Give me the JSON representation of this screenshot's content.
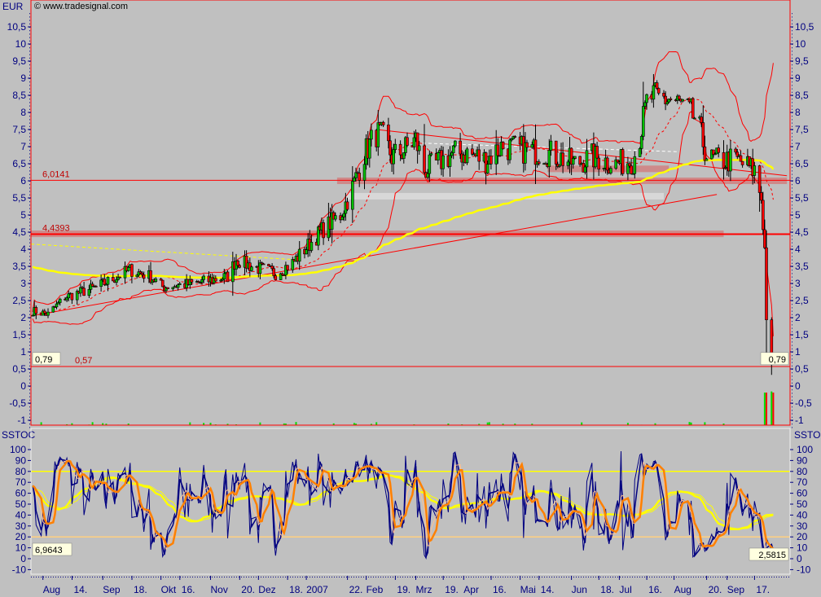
{
  "header": {
    "currency": "EUR",
    "copyright": "© www.tradesignal.com",
    "indicator": "SSTOC"
  },
  "colors": {
    "background": "#c0c0c0",
    "axis_text": "#000080",
    "panel_border": "#ff0000",
    "up_candle": "#00c000",
    "down_candle": "#ff0000",
    "bollinger": "#ff0000",
    "long_ma": "#ffff00",
    "stoch_fast": "#000080",
    "stoch_slow": "#ff8000",
    "stoch_signal": "#ffc090",
    "stoch_long": "#ffff00"
  },
  "chart_data": [
    {
      "type": "candlestick",
      "title": "",
      "ylabel": "EUR",
      "ylim": [
        -1.2,
        10.9
      ],
      "yticks": [
        "-1",
        "-0,5",
        "0",
        "0,5",
        "1",
        "1,5",
        "2",
        "2,5",
        "3",
        "3,5",
        "4",
        "4,5",
        "5",
        "5,5",
        "6",
        "6,5",
        "7",
        "7,5",
        "8",
        "8,5",
        "9",
        "9,5",
        "10",
        "10,5"
      ],
      "xticks": [
        "Aug",
        "14.",
        "Sep",
        "18.",
        "Okt",
        "16.",
        "Nov",
        "20.",
        "Dez",
        "18.",
        "2007",
        "22.",
        "Feb",
        "19.",
        "Mrz",
        "19.",
        "Apr",
        "16.",
        "Mai",
        "14.",
        "Jun",
        "18.",
        "Jul",
        "16.",
        "Aug",
        "20.",
        "Sep",
        "17."
      ],
      "last_price": "0,79",
      "horizontal_lines": [
        {
          "value": 6.0141,
          "label": "6,0141"
        },
        {
          "value": 4.4393,
          "label": "4,4393"
        },
        {
          "value": 0.57,
          "label": "0,57"
        }
      ],
      "close_series": [
        [
          "2006-07-19",
          2.2
        ],
        [
          "2006-07-28",
          2.1
        ],
        [
          "2006-08-07",
          2.6
        ],
        [
          "2006-08-26",
          2.9
        ],
        [
          "2006-09-14",
          3.4
        ],
        [
          "2006-09-26",
          3.2
        ],
        [
          "2006-10-03",
          2.9
        ],
        [
          "2006-10-22",
          3.0
        ],
        [
          "2006-11-10",
          3.2
        ],
        [
          "2006-11-15",
          3.7
        ],
        [
          "2006-11-24",
          3.5
        ],
        [
          "2006-12-08",
          3.3
        ],
        [
          "2006-12-18",
          3.6
        ],
        [
          "2006-12-27",
          4.1
        ],
        [
          "2007-01-05",
          4.6
        ],
        [
          "2007-01-15",
          5.0
        ],
        [
          "2007-01-22",
          5.8
        ],
        [
          "2007-01-29",
          6.8
        ],
        [
          "2007-02-05",
          7.4
        ],
        [
          "2007-02-10",
          7.2
        ],
        [
          "2007-02-14",
          6.7
        ],
        [
          "2007-02-21",
          6.9
        ],
        [
          "2007-02-28",
          7.2
        ],
        [
          "2007-03-05",
          6.3
        ],
        [
          "2007-03-12",
          6.5
        ],
        [
          "2007-03-22",
          6.8
        ],
        [
          "2007-03-31",
          6.8
        ],
        [
          "2007-04-10",
          6.6
        ],
        [
          "2007-04-19",
          7.0
        ],
        [
          "2007-05-03",
          6.9
        ],
        [
          "2007-05-18",
          6.8
        ],
        [
          "2007-06-01",
          6.5
        ],
        [
          "2007-06-11",
          6.7
        ],
        [
          "2007-06-25",
          6.5
        ],
        [
          "2007-07-05",
          6.6
        ],
        [
          "2007-07-09",
          7.3
        ],
        [
          "2007-07-14",
          8.5
        ],
        [
          "2007-07-18",
          8.4
        ],
        [
          "2007-07-26",
          8.4
        ],
        [
          "2007-08-02",
          8.2
        ],
        [
          "2007-08-11",
          7.8
        ],
        [
          "2007-08-18",
          6.6
        ],
        [
          "2007-08-26",
          6.6
        ],
        [
          "2007-09-04",
          6.6
        ],
        [
          "2007-09-14",
          6.3
        ],
        [
          "2007-09-18",
          5.5
        ],
        [
          "2007-09-20",
          4.0
        ],
        [
          "2007-09-21",
          2.0
        ],
        [
          "2007-09-23",
          0.8
        ],
        [
          "2007-09-25",
          0.79
        ]
      ],
      "zones": [
        {
          "value": 6.0,
          "from": "2007-01-13",
          "to": "2007-10-03",
          "color": "#d08080"
        },
        {
          "value": 4.45,
          "from": "2006-07-18",
          "to": "2007-08-27",
          "color": "#d08080"
        },
        {
          "value": 6.35,
          "from": "2007-05-16",
          "to": "2007-07-26",
          "color": "#d08080"
        },
        {
          "value": 5.55,
          "from": "2007-01-18",
          "to": "2007-07-23",
          "color": "#dcdcdc"
        }
      ],
      "trendlines": [
        {
          "from": [
            "2006-07-18",
            2.05
          ],
          "to": [
            "2007-08-23",
            5.6
          ],
          "color": "#ff0000",
          "style": "solid"
        },
        {
          "from": [
            "2007-02-05",
            7.5
          ],
          "to": [
            "2007-10-03",
            6.15
          ],
          "color": "#ff0000",
          "style": "solid"
        },
        {
          "from": [
            "2007-03-04",
            7.1
          ],
          "to": [
            "2007-08-01",
            6.85
          ],
          "color": "#ffffff",
          "style": "dashed"
        },
        {
          "from": [
            "2006-07-18",
            4.15
          ],
          "to": [
            "2006-12-18",
            3.7
          ],
          "color": "#ffff00",
          "style": "dashed"
        }
      ]
    },
    {
      "type": "line",
      "title": "SSTOC",
      "ylim": [
        -22,
        108
      ],
      "yticks": [
        "-10",
        "0",
        "10",
        "20",
        "30",
        "40",
        "50",
        "60",
        "70",
        "80",
        "90",
        "100"
      ],
      "reference_lines": [
        80,
        20
      ],
      "left_value": "6,9643",
      "right_value": "2,5815"
    }
  ]
}
